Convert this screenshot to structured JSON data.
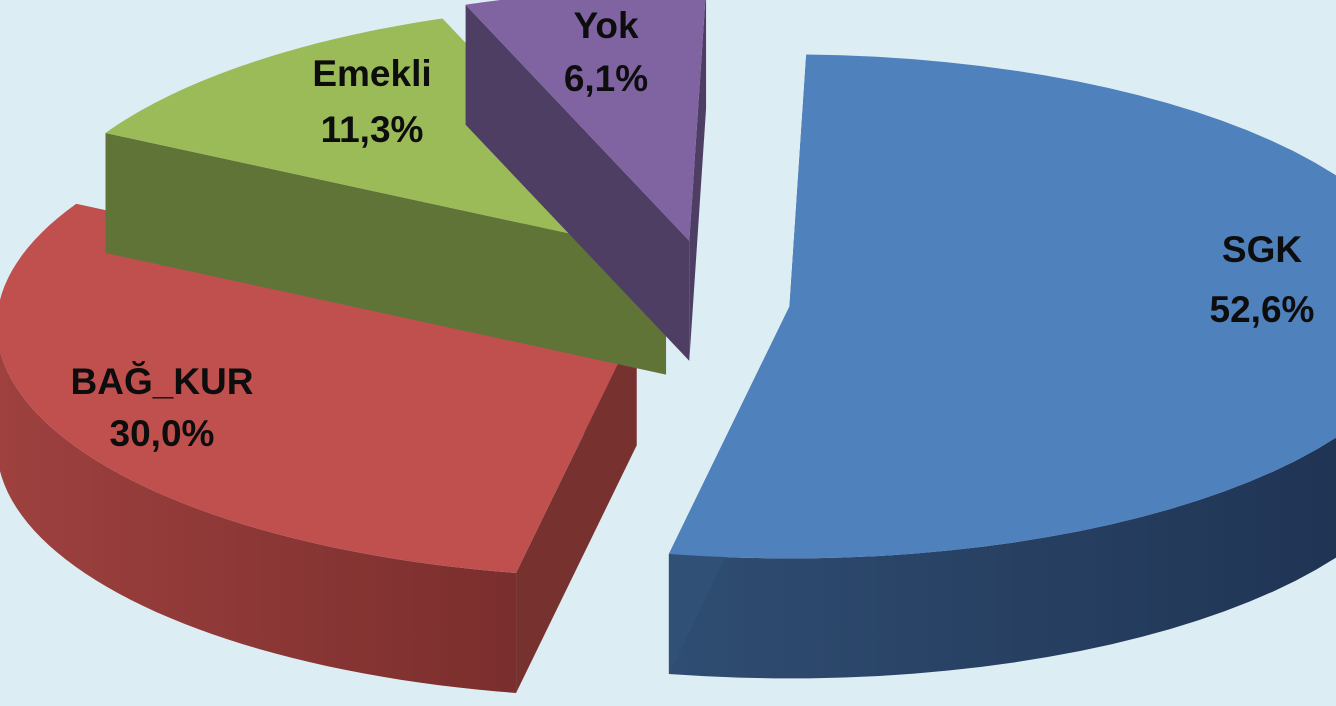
{
  "chart_data": {
    "type": "pie",
    "style": "3d-exploded",
    "title": "",
    "categories": [
      "SGK",
      "BAĞ_KUR",
      "Emekli",
      "Yok"
    ],
    "values": [
      52.6,
      30.0,
      11.3,
      6.1
    ],
    "value_labels": [
      "52,6%",
      "30,0%",
      "11,3%",
      "6,1%"
    ],
    "colors": [
      "#4f81bd",
      "#c0504d",
      "#9bbb59",
      "#8064a2"
    ],
    "legend": "none",
    "labels_on_slices": true
  }
}
